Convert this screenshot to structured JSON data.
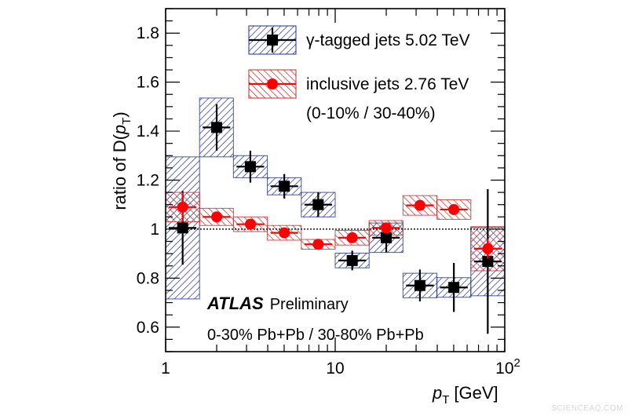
{
  "chart_data": {
    "type": "scatter",
    "xlabel_main": "p",
    "xlabel_sub": "T",
    "xlabel_unit": "[GeV]",
    "ylabel_prefix": "ratio of D(",
    "ylabel_var": "p",
    "ylabel_sub": "T",
    "ylabel_suffix": ")",
    "x_scale": "log",
    "xlim": [
      1,
      100
    ],
    "ylim": [
      0.5,
      1.9
    ],
    "x_ticks": [
      {
        "value": 1,
        "label": "1"
      },
      {
        "value": 10,
        "label": "10"
      },
      {
        "value": 100,
        "label": "10",
        "sup": "2"
      }
    ],
    "y_ticks": [
      {
        "value": 0.6,
        "label": "0.6"
      },
      {
        "value": 0.8,
        "label": "0.8"
      },
      {
        "value": 1.0,
        "label": "1"
      },
      {
        "value": 1.2,
        "label": "1.2"
      },
      {
        "value": 1.4,
        "label": "1.4"
      },
      {
        "value": 1.6,
        "label": "1.6"
      },
      {
        "value": 1.8,
        "label": "1.8"
      }
    ],
    "reference_line": 1.0,
    "grid": false,
    "legend_position": "top-right",
    "series": [
      {
        "name": "γ-tagged jets 5.02 TeV",
        "color": "#000000",
        "hatch_color": "#1f2f8a",
        "marker": "square",
        "points": [
          {
            "x": 1.26,
            "xlo": 1.0,
            "xhi": 1.585,
            "y": 1.005,
            "stat": 0.15,
            "sys": 0.29
          },
          {
            "x": 2.0,
            "xlo": 1.585,
            "xhi": 2.51,
            "y": 1.415,
            "stat": 0.095,
            "sys": 0.12
          },
          {
            "x": 3.16,
            "xlo": 2.51,
            "xhi": 3.98,
            "y": 1.255,
            "stat": 0.065,
            "sys": 0.045
          },
          {
            "x": 5.01,
            "xlo": 3.98,
            "xhi": 6.31,
            "y": 1.175,
            "stat": 0.05,
            "sys": 0.035
          },
          {
            "x": 7.94,
            "xlo": 6.31,
            "xhi": 10.0,
            "y": 1.1,
            "stat": 0.05,
            "sys": 0.05
          },
          {
            "x": 12.6,
            "xlo": 10.0,
            "xhi": 15.85,
            "y": 0.872,
            "stat": 0.04,
            "sys": 0.03
          },
          {
            "x": 20.0,
            "xlo": 15.85,
            "xhi": 25.1,
            "y": 0.965,
            "stat": 0.06,
            "sys": 0.06
          },
          {
            "x": 31.6,
            "xlo": 25.1,
            "xhi": 39.8,
            "y": 0.77,
            "stat": 0.065,
            "sys": 0.05
          },
          {
            "x": 50.1,
            "xlo": 39.8,
            "xhi": 63.1,
            "y": 0.762,
            "stat": 0.1,
            "sys": 0.04
          },
          {
            "x": 79.4,
            "xlo": 63.1,
            "xhi": 100.0,
            "y": 0.868,
            "stat": 0.295,
            "sys": 0.14
          }
        ]
      },
      {
        "name": "inclusive jets 2.76 TeV",
        "color": "#ff0000",
        "hatch_color": "#c62828",
        "marker": "circle",
        "points": [
          {
            "x": 1.26,
            "xlo": 1.0,
            "xhi": 1.585,
            "y": 1.09,
            "stat": 0.06,
            "sys": 0.06
          },
          {
            "x": 2.0,
            "xlo": 1.585,
            "xhi": 2.51,
            "y": 1.05,
            "stat": 0.02,
            "sys": 0.035
          },
          {
            "x": 3.16,
            "xlo": 2.51,
            "xhi": 3.98,
            "y": 1.02,
            "stat": 0.015,
            "sys": 0.03
          },
          {
            "x": 5.01,
            "xlo": 3.98,
            "xhi": 6.31,
            "y": 0.985,
            "stat": 0.01,
            "sys": 0.03
          },
          {
            "x": 7.94,
            "xlo": 6.31,
            "xhi": 10.0,
            "y": 0.938,
            "stat": 0.01,
            "sys": 0.02
          },
          {
            "x": 12.6,
            "xlo": 10.0,
            "xhi": 15.85,
            "y": 0.965,
            "stat": 0.01,
            "sys": 0.03
          },
          {
            "x": 20.0,
            "xlo": 15.85,
            "xhi": 25.1,
            "y": 1.005,
            "stat": 0.01,
            "sys": 0.03
          },
          {
            "x": 31.6,
            "xlo": 25.1,
            "xhi": 39.8,
            "y": 1.097,
            "stat": 0.015,
            "sys": 0.04
          },
          {
            "x": 50.1,
            "xlo": 39.8,
            "xhi": 63.1,
            "y": 1.08,
            "stat": 0.02,
            "sys": 0.04
          },
          {
            "x": 79.4,
            "xlo": 63.1,
            "xhi": 100.0,
            "y": 0.92,
            "stat": 0.04,
            "sys": 0.09
          }
        ]
      }
    ],
    "legend_note": "(0-10% / 30-40%)",
    "annotation_brand": "ATLAS",
    "annotation_status": "Preliminary",
    "annotation_line2": "0-30% Pb+Pb / 30-80% Pb+Pb"
  },
  "watermark": "SCIENCEAQ.COM"
}
